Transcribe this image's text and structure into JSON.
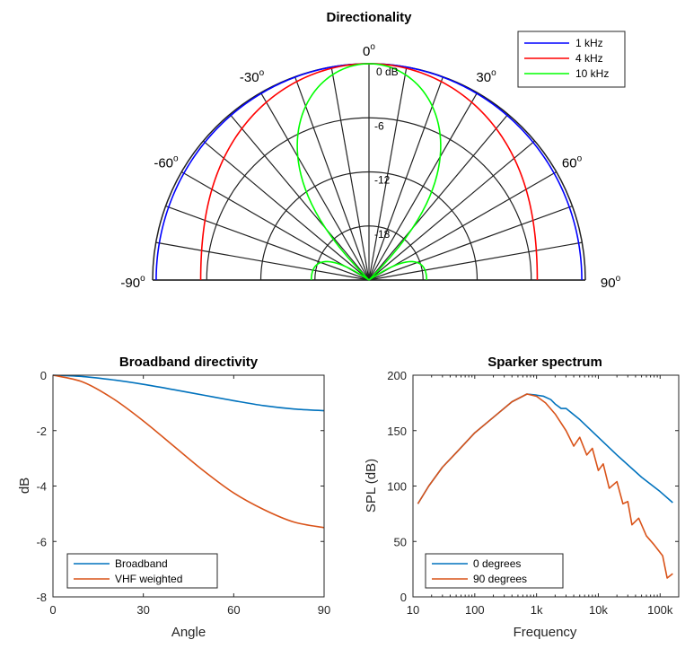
{
  "chart_data": [
    {
      "type": "polar",
      "title": "Directionality",
      "angle_range_deg": [
        -90,
        90
      ],
      "angle_step_deg": 10,
      "radial_unit": "dB",
      "radial_range": [
        -24,
        0
      ],
      "radial_ticks": [
        0,
        -6,
        -12,
        -18
      ],
      "radial_tick_labels": [
        "0 dB",
        "-6",
        "-12",
        "-18"
      ],
      "angle_labels": [
        {
          "angle": -90,
          "base": "-90",
          "sup": "o"
        },
        {
          "angle": -60,
          "base": "-60",
          "sup": "o"
        },
        {
          "angle": -30,
          "base": "-30",
          "sup": "o"
        },
        {
          "angle": 0,
          "base": "0",
          "sup": "o"
        },
        {
          "angle": 30,
          "base": "30",
          "sup": "o"
        },
        {
          "angle": 60,
          "base": "60",
          "sup": "o"
        },
        {
          "angle": 90,
          "base": "90",
          "sup": "o"
        }
      ],
      "legend_position": "top-right",
      "series": [
        {
          "name": "1 kHz",
          "color": "#0000ff",
          "model": "piston",
          "ka": 0.6
        },
        {
          "name": "4 kHz",
          "color": "#ff0000",
          "model": "piston",
          "ka": 2.1
        },
        {
          "name": "10 kHz",
          "color": "#00ff00",
          "model": "piston",
          "ka": 5.05
        }
      ]
    },
    {
      "type": "line",
      "title": "Broadband directivity",
      "xlabel": "Angle",
      "ylabel": "dB",
      "xlim": [
        0,
        90
      ],
      "ylim": [
        -8,
        0
      ],
      "xticks": [
        0,
        30,
        60,
        90
      ],
      "yticks": [
        0,
        -2,
        -4,
        -6,
        -8
      ],
      "grid": false,
      "legend_position": "bottom-left",
      "x": [
        0,
        10,
        20,
        30,
        40,
        50,
        60,
        70,
        80,
        90
      ],
      "series": [
        {
          "name": "Broadband",
          "color": "#0072bd",
          "values": [
            0,
            -0.05,
            -0.17,
            -0.33,
            -0.52,
            -0.72,
            -0.92,
            -1.1,
            -1.22,
            -1.28
          ]
        },
        {
          "name": "VHF weighted",
          "color": "#d95319",
          "values": [
            0,
            -0.25,
            -0.85,
            -1.65,
            -2.55,
            -3.45,
            -4.25,
            -4.85,
            -5.3,
            -5.5
          ]
        }
      ]
    },
    {
      "type": "line",
      "title": "Sparker spectrum",
      "xlabel": "Frequency",
      "ylabel": "SPL (dB)",
      "xscale": "log",
      "xlim": [
        10,
        200000
      ],
      "ylim": [
        0,
        200
      ],
      "xticks": [
        10,
        100,
        1000,
        10000,
        100000
      ],
      "xtick_labels": [
        "10",
        "100",
        "1k",
        "10k",
        "100k"
      ],
      "yticks": [
        0,
        50,
        100,
        150,
        200
      ],
      "grid": false,
      "legend_position": "bottom-left",
      "series": [
        {
          "name": "0 degrees",
          "color": "#0072bd",
          "x": [
            12,
            18,
            30,
            50,
            100,
            200,
            400,
            700,
            1000,
            1300,
            1700,
            2000,
            2500,
            3000,
            5000,
            10000,
            20000,
            50000,
            100000,
            160000
          ],
          "values": [
            84,
            100,
            117,
            130,
            148,
            162,
            176,
            183,
            182,
            181,
            178,
            174,
            170,
            170,
            160,
            144,
            128,
            108,
            95,
            85
          ]
        },
        {
          "name": "90 degrees",
          "color": "#d95319",
          "x": [
            12,
            18,
            30,
            50,
            100,
            200,
            400,
            700,
            1000,
            1400,
            2000,
            3000,
            4000,
            5000,
            6500,
            8000,
            10000,
            12000,
            15000,
            20000,
            25000,
            30000,
            35000,
            45000,
            60000,
            80000,
            110000,
            130000,
            160000
          ],
          "values": [
            84,
            100,
            117,
            130,
            148,
            162,
            176,
            183,
            181,
            175,
            165,
            150,
            136,
            144,
            128,
            134,
            114,
            120,
            98,
            104,
            84,
            86,
            65,
            71,
            55,
            47,
            37,
            17,
            21
          ]
        }
      ]
    }
  ]
}
